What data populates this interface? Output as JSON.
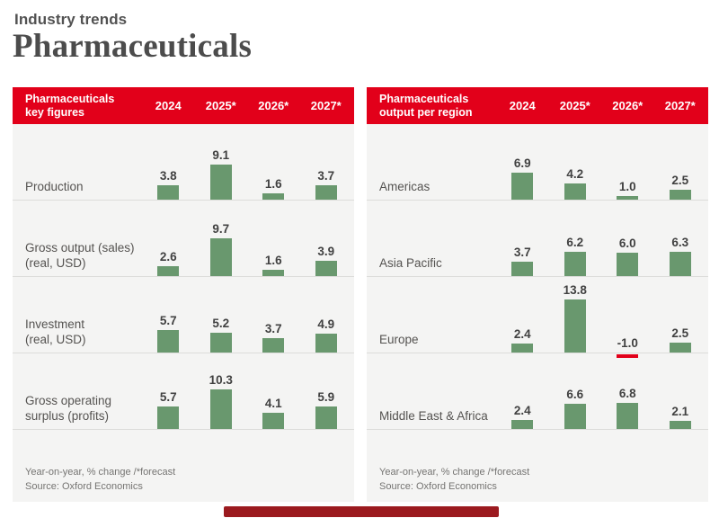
{
  "page": {
    "eyebrow": "Industry trends",
    "title": "Pharmaceuticals"
  },
  "colors": {
    "header_red": "#e2001a",
    "bar_green": "#69986e",
    "negative_bar_red": "#e2001a",
    "panel_background": "#f4f4f3",
    "bottom_bar_red": "#9b1a1f"
  },
  "chart_data": [
    {
      "type": "bar",
      "title": "Pharmaceuticals key figures",
      "title_lines": [
        "Pharmaceuticals",
        "key figures"
      ],
      "categories": [
        "2024",
        "2025*",
        "2026*",
        "2027*"
      ],
      "series": [
        {
          "name": "Production",
          "label_lines": [
            "Production"
          ],
          "values": [
            3.8,
            9.1,
            1.6,
            3.7
          ]
        },
        {
          "name": "Gross output (sales) (real, USD)",
          "label_lines": [
            "Gross output (sales)",
            "(real, USD)"
          ],
          "values": [
            2.6,
            9.7,
            1.6,
            3.9
          ]
        },
        {
          "name": "Investment (real, USD)",
          "label_lines": [
            "Investment",
            "(real, USD)"
          ],
          "values": [
            5.7,
            5.2,
            3.7,
            4.9
          ]
        },
        {
          "name": "Gross operating surplus (profits)",
          "label_lines": [
            "Gross operating",
            "surplus (profits)"
          ],
          "values": [
            5.7,
            10.3,
            4.1,
            5.9
          ]
        }
      ],
      "ylim": [
        -1.5,
        14
      ],
      "grid": false,
      "legend": "none",
      "footnote": "Year-on-year, % change /*forecast",
      "source": "Source: Oxford Economics"
    },
    {
      "type": "bar",
      "title": "Pharmaceuticals output per region",
      "title_lines": [
        "Pharmaceuticals",
        "output per region"
      ],
      "categories": [
        "2024",
        "2025*",
        "2026*",
        "2027*"
      ],
      "series": [
        {
          "name": "Americas",
          "label_lines": [
            "Americas"
          ],
          "values": [
            6.9,
            4.2,
            1.0,
            2.5
          ]
        },
        {
          "name": "Asia Pacific",
          "label_lines": [
            "Asia Pacific"
          ],
          "values": [
            3.7,
            6.2,
            6.0,
            6.3
          ]
        },
        {
          "name": "Europe",
          "label_lines": [
            "Europe"
          ],
          "values": [
            2.4,
            13.8,
            -1.0,
            2.5
          ]
        },
        {
          "name": "Middle East & Africa",
          "label_lines": [
            "Middle East & Africa"
          ],
          "values": [
            2.4,
            6.6,
            6.8,
            2.1
          ]
        }
      ],
      "ylim": [
        -1.5,
        14
      ],
      "grid": false,
      "legend": "none",
      "footnote": "Year-on-year, % change /*forecast",
      "source": "Source: Oxford Economics"
    }
  ]
}
